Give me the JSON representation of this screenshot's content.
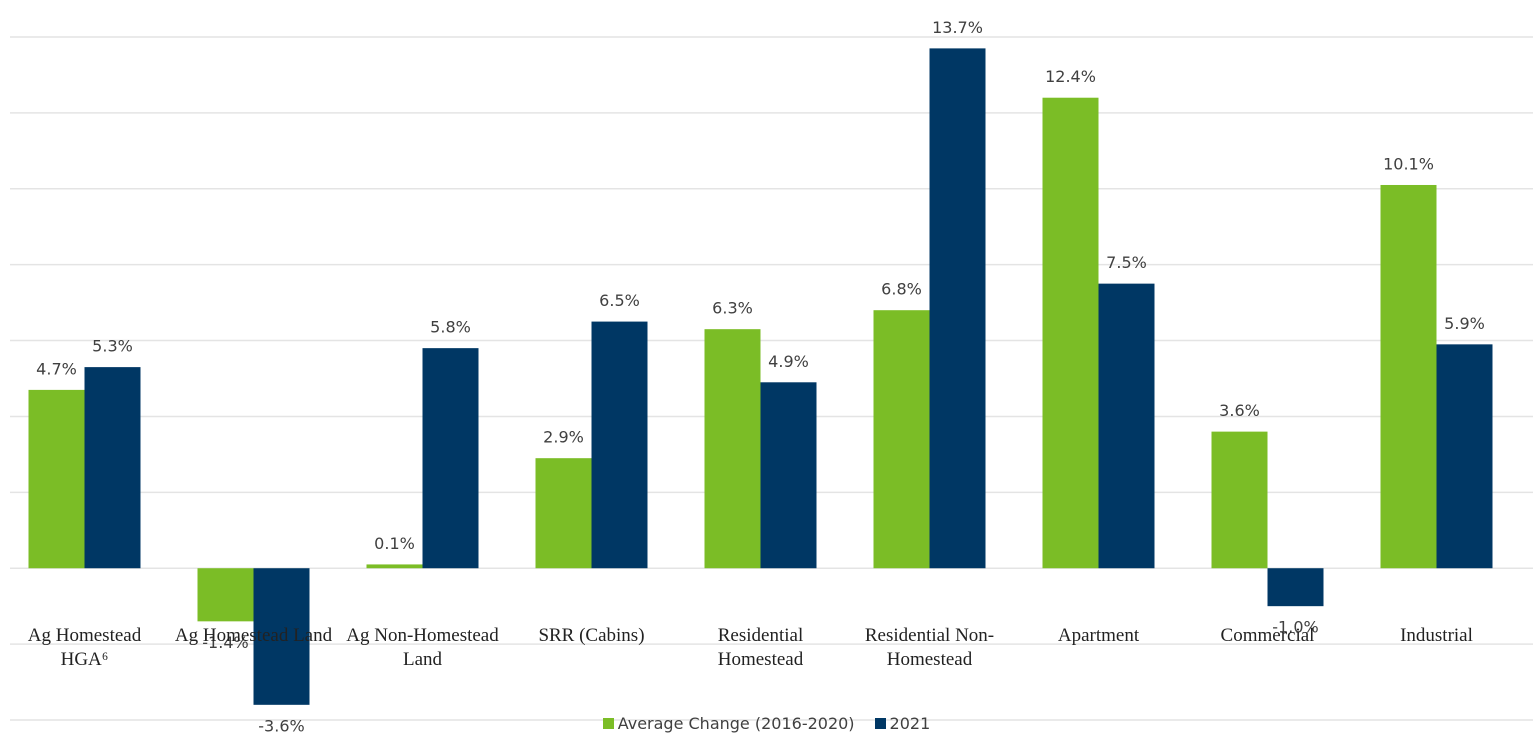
{
  "chart_data": {
    "type": "bar",
    "categories": [
      "Ag Homestead HGA⁶",
      "Ag Homestead Land",
      "Ag Non-Homestead Land",
      "SRR (Cabins)",
      "Residential Homestead",
      "Residential Non-Homestead",
      "Apartment",
      "Commercial",
      "Industrial"
    ],
    "series": [
      {
        "name": "Average Change (2016-2020)",
        "color": "#7bbd26",
        "values": [
          4.7,
          -1.4,
          0.1,
          2.9,
          6.3,
          6.8,
          12.4,
          3.6,
          10.1
        ],
        "value_labels": [
          "4.7%",
          "-1.4%",
          "0.1%",
          "2.9%",
          "6.3%",
          "6.8%",
          "12.4%",
          "3.6%",
          "10.1%"
        ]
      },
      {
        "name": "2021",
        "color": "#003764",
        "values": [
          5.3,
          -3.6,
          5.8,
          6.5,
          4.9,
          13.7,
          7.5,
          -1.0,
          5.9
        ],
        "value_labels": [
          "5.3%",
          "-3.6%",
          "5.8%",
          "6.5%",
          "4.9%",
          "13.7%",
          "7.5%",
          "-1.0%",
          "5.9%"
        ]
      }
    ],
    "ylim": [
      -4,
      14
    ],
    "yticks": [
      -4,
      -2,
      0,
      2,
      4,
      6,
      8,
      10,
      12,
      14
    ],
    "grid": true,
    "legend": "bottom"
  }
}
